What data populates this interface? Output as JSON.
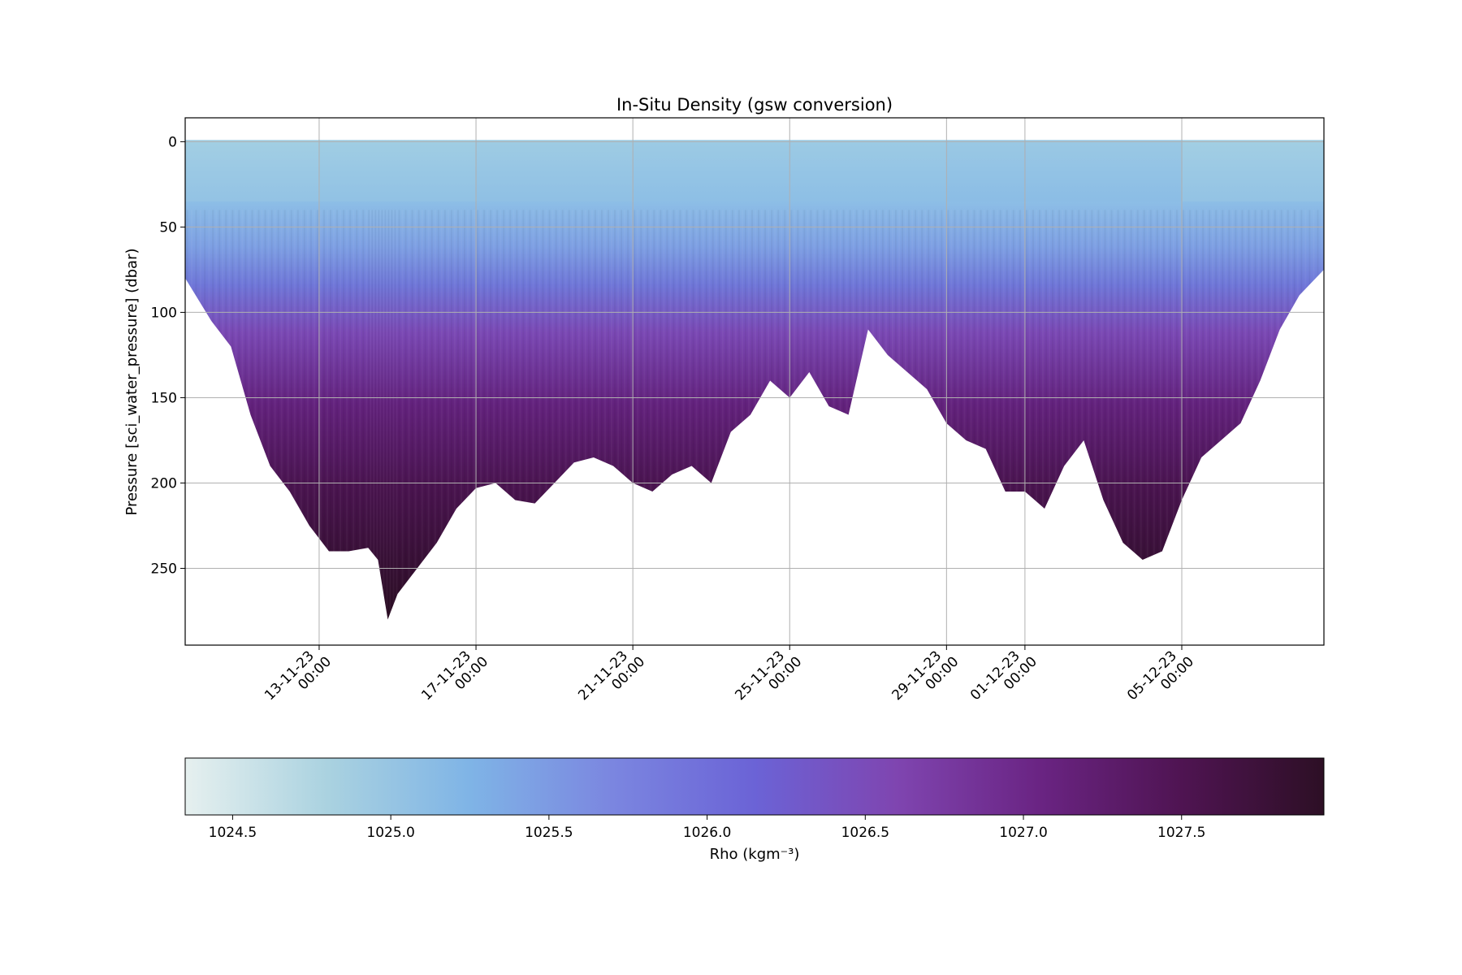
{
  "chart_data": {
    "type": "scatter",
    "title": "In-Situ Density (gsw conversion)",
    "xlabel": "",
    "ylabel": "Pressure [sci_water_pressure] (dbar)",
    "x_type": "date",
    "xlim": [
      "2023-11-09T14:00",
      "2023-12-08T15:00"
    ],
    "ylim": [
      295,
      -14
    ],
    "y_inverted": true,
    "grid": true,
    "x_ticks": [
      {
        "date": "2023-11-13T00:00",
        "line1": "13-11-23",
        "line2": "00:00"
      },
      {
        "date": "2023-11-17T00:00",
        "line1": "17-11-23",
        "line2": "00:00"
      },
      {
        "date": "2023-11-21T00:00",
        "line1": "21-11-23",
        "line2": "00:00"
      },
      {
        "date": "2023-11-25T00:00",
        "line1": "25-11-23",
        "line2": "00:00"
      },
      {
        "date": "2023-11-29T00:00",
        "line1": "29-11-23",
        "line2": "00:00"
      },
      {
        "date": "2023-12-01T00:00",
        "line1": "01-12-23",
        "line2": "00:00"
      },
      {
        "date": "2023-12-05T00:00",
        "line1": "05-12-23",
        "line2": "00:00"
      }
    ],
    "y_ticks": [
      0,
      50,
      100,
      150,
      200,
      250
    ],
    "colorbar": {
      "label": "Rho (kgm⁻³)",
      "range": [
        1024.35,
        1027.95
      ],
      "ticks": [
        1024.5,
        1025.0,
        1025.5,
        1026.0,
        1026.5,
        1027.0,
        1027.5
      ],
      "tick_labels": [
        "1024.5",
        "1025.0",
        "1025.5",
        "1026.0",
        "1026.5",
        "1027.0",
        "1027.5"
      ],
      "colormap": [
        "#e6f0ef",
        "#aad2e0",
        "#7fb4e6",
        "#7b86e0",
        "#6b63d6",
        "#7f45b0",
        "#6a2483",
        "#4f1452",
        "#2d0f25"
      ]
    },
    "profile_max_depth": {
      "note_units": "dbar",
      "dates": [
        "2023-11-09T14:00",
        "2023-11-10T06:00",
        "2023-11-10T18:00",
        "2023-11-11T06:00",
        "2023-11-11T18:00",
        "2023-11-12T06:00",
        "2023-11-12T18:00",
        "2023-11-13T06:00",
        "2023-11-13T18:00",
        "2023-11-14T06:00",
        "2023-11-14T12:00",
        "2023-11-14T18:00",
        "2023-11-15T00:00",
        "2023-11-15T12:00",
        "2023-11-16T00:00",
        "2023-11-16T12:00",
        "2023-11-17T00:00",
        "2023-11-17T12:00",
        "2023-11-18T00:00",
        "2023-11-18T12:00",
        "2023-11-19T00:00",
        "2023-11-19T12:00",
        "2023-11-20T00:00",
        "2023-11-20T12:00",
        "2023-11-21T00:00",
        "2023-11-21T12:00",
        "2023-11-22T00:00",
        "2023-11-22T12:00",
        "2023-11-23T00:00",
        "2023-11-23T12:00",
        "2023-11-24T00:00",
        "2023-11-24T12:00",
        "2023-11-25T00:00",
        "2023-11-25T12:00",
        "2023-11-26T00:00",
        "2023-11-26T12:00",
        "2023-11-27T00:00",
        "2023-11-27T12:00",
        "2023-11-28T00:00",
        "2023-11-28T12:00",
        "2023-11-29T00:00",
        "2023-11-29T12:00",
        "2023-11-30T00:00",
        "2023-11-30T12:00",
        "2023-12-01T00:00",
        "2023-12-01T12:00",
        "2023-12-02T00:00",
        "2023-12-02T12:00",
        "2023-12-03T00:00",
        "2023-12-03T12:00",
        "2023-12-04T00:00",
        "2023-12-04T12:00",
        "2023-12-05T00:00",
        "2023-12-05T12:00",
        "2023-12-06T00:00",
        "2023-12-06T12:00",
        "2023-12-07T00:00",
        "2023-12-07T12:00",
        "2023-12-08T00:00",
        "2023-12-08T15:00"
      ],
      "values": [
        80,
        105,
        120,
        160,
        190,
        205,
        225,
        240,
        240,
        238,
        245,
        280,
        265,
        250,
        235,
        215,
        203,
        200,
        210,
        212,
        200,
        188,
        185,
        190,
        200,
        205,
        195,
        190,
        200,
        170,
        160,
        140,
        150,
        135,
        155,
        160,
        110,
        125,
        135,
        145,
        165,
        175,
        180,
        205,
        205,
        215,
        190,
        175,
        210,
        235,
        245,
        240,
        210,
        185,
        175,
        165,
        140,
        110,
        90,
        75
      ]
    },
    "surface_density_estimate": {
      "dates": [
        "2023-11-09T14:00",
        "2023-11-13T00:00",
        "2023-11-17T00:00",
        "2023-11-21T00:00",
        "2023-11-25T00:00",
        "2023-11-29T00:00",
        "2023-12-01T00:00",
        "2023-12-05T00:00",
        "2023-12-08T15:00"
      ],
      "values": [
        1024.95,
        1025.0,
        1025.05,
        1025.1,
        1025.1,
        1025.15,
        1025.15,
        1024.95,
        1025.05
      ]
    },
    "bottom_density_max": 1027.9
  }
}
